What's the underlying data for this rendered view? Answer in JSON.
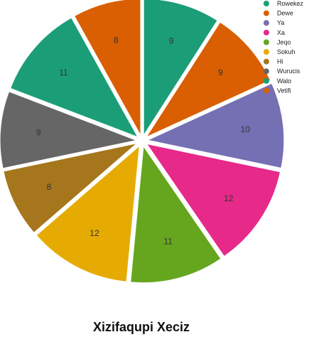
{
  "chart_data": {
    "type": "pie",
    "title": "Xizifaqupi Xeciz",
    "legend_position": "top-right",
    "categories": [
      "Rowekez",
      "Dewe",
      "Ya",
      "Xa",
      "Jeqo",
      "Sokuh",
      "Hi",
      "Wurucis",
      "Walo",
      "Vetifi"
    ],
    "values": [
      9,
      9,
      10,
      12,
      11,
      12,
      8,
      9,
      11,
      8
    ],
    "colors": [
      "#1b9e77",
      "#d95f02",
      "#7570b3",
      "#e7298a",
      "#66a61e",
      "#e6ab02",
      "#a6761d",
      "#666666",
      "#1b9e77",
      "#d95f02"
    ],
    "exploded": true
  }
}
